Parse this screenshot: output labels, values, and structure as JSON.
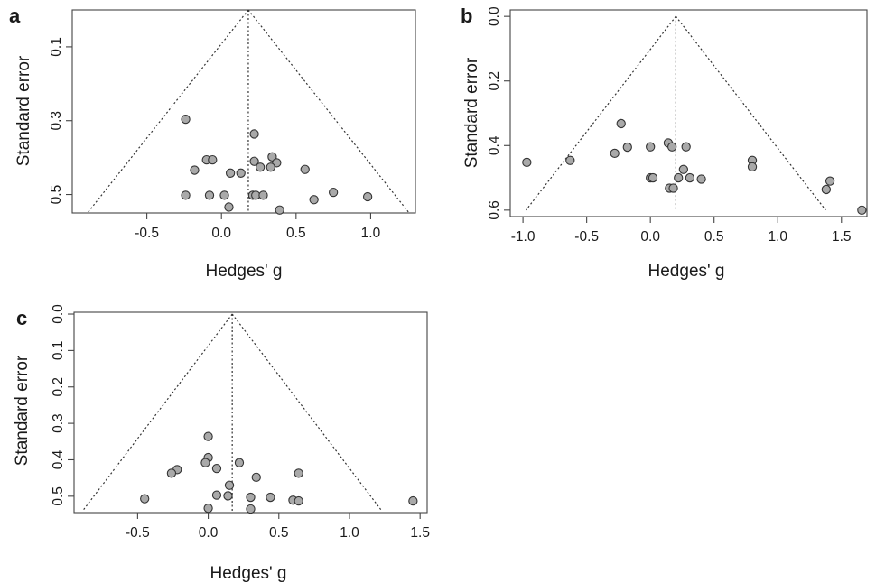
{
  "colors": {
    "point_fill": "#a9a9a9",
    "point_stroke": "#333333",
    "axis": "#444444",
    "funnel": "#333333"
  },
  "chart_data": [
    {
      "type": "scatter",
      "panel_label": "a",
      "xlabel": "Hedges' g",
      "ylabel": "Standard error",
      "xlim": [
        -1.0,
        1.3
      ],
      "ylim_reversed": [
        0.55,
        0.0
      ],
      "x_ticks": [
        "-0.5",
        "0.0",
        "0.5",
        "1.0"
      ],
      "x_tick_values": [
        -0.5,
        0.0,
        0.5,
        1.0
      ],
      "y_ticks": [
        "0.1",
        "0.3",
        "0.5"
      ],
      "y_tick_values": [
        0.1,
        0.3,
        0.5
      ],
      "pooled_estimate": 0.18,
      "funnel_base_se": 0.55,
      "points": [
        {
          "x": -0.24,
          "y": 0.296
        },
        {
          "x": 0.22,
          "y": 0.336
        },
        {
          "x": 0.34,
          "y": 0.398
        },
        {
          "x": 0.37,
          "y": 0.414
        },
        {
          "x": -0.1,
          "y": 0.406
        },
        {
          "x": -0.06,
          "y": 0.406
        },
        {
          "x": 0.22,
          "y": 0.41
        },
        {
          "x": 0.26,
          "y": 0.426
        },
        {
          "x": 0.33,
          "y": 0.426
        },
        {
          "x": -0.18,
          "y": 0.434
        },
        {
          "x": 0.06,
          "y": 0.442
        },
        {
          "x": 0.13,
          "y": 0.442
        },
        {
          "x": 0.56,
          "y": 0.432
        },
        {
          "x": -0.24,
          "y": 0.502
        },
        {
          "x": -0.08,
          "y": 0.502
        },
        {
          "x": 0.02,
          "y": 0.502
        },
        {
          "x": 0.21,
          "y": 0.502
        },
        {
          "x": 0.23,
          "y": 0.502
        },
        {
          "x": 0.28,
          "y": 0.502
        },
        {
          "x": 0.75,
          "y": 0.494
        },
        {
          "x": 0.98,
          "y": 0.506
        },
        {
          "x": 0.62,
          "y": 0.514
        },
        {
          "x": 0.05,
          "y": 0.534
        },
        {
          "x": 0.39,
          "y": 0.542
        }
      ]
    },
    {
      "type": "scatter",
      "panel_label": "b",
      "xlabel": "Hedges' g",
      "ylabel": "Standard error",
      "xlim": [
        -1.1,
        1.7
      ],
      "ylim_reversed": [
        0.62,
        -0.02
      ],
      "x_ticks": [
        "-1.0",
        "-0.5",
        "0.0",
        "0.5",
        "1.0",
        "1.5"
      ],
      "x_tick_values": [
        -1.0,
        -0.5,
        0.0,
        0.5,
        1.0,
        1.5
      ],
      "y_ticks": [
        "0.0",
        "0.2",
        "0.4",
        "0.6"
      ],
      "y_tick_values": [
        0.0,
        0.2,
        0.4,
        0.6
      ],
      "pooled_estimate": 0.2,
      "funnel_base_se": 0.6,
      "points": [
        {
          "x": -0.23,
          "y": 0.332
        },
        {
          "x": 0.14,
          "y": 0.392
        },
        {
          "x": -0.18,
          "y": 0.405
        },
        {
          "x": 0.0,
          "y": 0.404
        },
        {
          "x": 0.17,
          "y": 0.404
        },
        {
          "x": 0.28,
          "y": 0.404
        },
        {
          "x": -0.28,
          "y": 0.424
        },
        {
          "x": -0.63,
          "y": 0.446
        },
        {
          "x": -0.97,
          "y": 0.452
        },
        {
          "x": 0.8,
          "y": 0.446
        },
        {
          "x": 0.8,
          "y": 0.466
        },
        {
          "x": 0.26,
          "y": 0.474
        },
        {
          "x": 0.0,
          "y": 0.5
        },
        {
          "x": 0.02,
          "y": 0.5
        },
        {
          "x": 0.22,
          "y": 0.5
        },
        {
          "x": 0.31,
          "y": 0.5
        },
        {
          "x": 0.4,
          "y": 0.504
        },
        {
          "x": 1.41,
          "y": 0.51
        },
        {
          "x": 0.15,
          "y": 0.532
        },
        {
          "x": 0.18,
          "y": 0.532
        },
        {
          "x": 1.38,
          "y": 0.536
        },
        {
          "x": 1.66,
          "y": 0.6
        }
      ]
    },
    {
      "type": "scatter",
      "panel_label": "c",
      "xlabel": "Hedges' g",
      "ylabel": "Standard error",
      "xlim": [
        -0.95,
        1.55
      ],
      "ylim_reversed": [
        0.545,
        -0.005
      ],
      "x_ticks": [
        "-0.5",
        "0.0",
        "0.5",
        "1.0",
        "1.5"
      ],
      "x_tick_values": [
        -0.5,
        0.0,
        0.5,
        1.0,
        1.5
      ],
      "y_ticks": [
        "0.0",
        "0.1",
        "0.2",
        "0.3",
        "0.4",
        "0.5"
      ],
      "y_tick_values": [
        0.0,
        0.1,
        0.2,
        0.3,
        0.4,
        0.5
      ],
      "pooled_estimate": 0.17,
      "funnel_base_se": 0.54,
      "points": [
        {
          "x": 0.0,
          "y": 0.336
        },
        {
          "x": 0.0,
          "y": 0.394
        },
        {
          "x": -0.02,
          "y": 0.408
        },
        {
          "x": 0.22,
          "y": 0.408
        },
        {
          "x": 0.06,
          "y": 0.424
        },
        {
          "x": -0.22,
          "y": 0.427
        },
        {
          "x": -0.26,
          "y": 0.437
        },
        {
          "x": 0.64,
          "y": 0.437
        },
        {
          "x": 0.34,
          "y": 0.448
        },
        {
          "x": 0.15,
          "y": 0.47
        },
        {
          "x": 0.06,
          "y": 0.497
        },
        {
          "x": 0.14,
          "y": 0.499
        },
        {
          "x": 0.3,
          "y": 0.503
        },
        {
          "x": 0.44,
          "y": 0.503
        },
        {
          "x": -0.45,
          "y": 0.507
        },
        {
          "x": 0.6,
          "y": 0.511
        },
        {
          "x": 0.64,
          "y": 0.513
        },
        {
          "x": 1.45,
          "y": 0.513
        },
        {
          "x": 0.0,
          "y": 0.533
        },
        {
          "x": 0.3,
          "y": 0.535
        }
      ]
    }
  ]
}
